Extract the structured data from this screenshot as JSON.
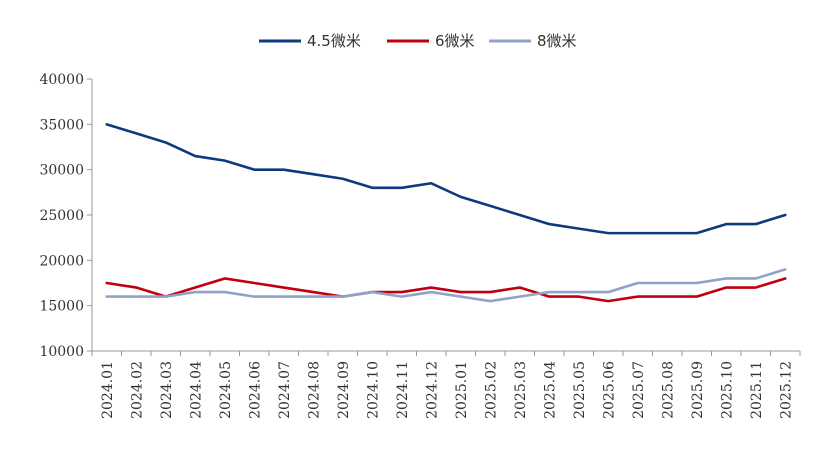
{
  "chart_data": {
    "type": "line",
    "title": "",
    "xlabel": "",
    "ylabel": "",
    "ylim": [
      10000,
      40000
    ],
    "yticks": [
      10000,
      15000,
      20000,
      25000,
      30000,
      35000,
      40000
    ],
    "grid": false,
    "legend_position": "top-center",
    "categories": [
      "2024.01",
      "2024.02",
      "2024.03",
      "2024.04",
      "2024.05",
      "2024.06",
      "2024.07",
      "2024.08",
      "2024.09",
      "2024.10",
      "2024.11",
      "2024.12",
      "2025.01",
      "2025.02",
      "2025.03",
      "2025.04",
      "2025.05",
      "2025.06",
      "2025.07",
      "2025.08",
      "2025.09",
      "2025.10",
      "2025.11",
      "2025.12"
    ],
    "series": [
      {
        "name": "4.5微米",
        "color": "#0d3a7f",
        "values": [
          35000,
          34000,
          33000,
          31500,
          31000,
          30000,
          30000,
          29500,
          29000,
          28000,
          28000,
          28500,
          27000,
          26000,
          25000,
          24000,
          23500,
          23000,
          23000,
          23000,
          23000,
          24000,
          24000,
          25000
        ]
      },
      {
        "name": "6微米",
        "color": "#c00010",
        "values": [
          17500,
          17000,
          16000,
          17000,
          18000,
          17500,
          17000,
          16500,
          16000,
          16500,
          16500,
          17000,
          16500,
          16500,
          17000,
          16000,
          16000,
          15500,
          16000,
          16000,
          16000,
          17000,
          17000,
          18000
        ]
      },
      {
        "name": "8微米",
        "color": "#8fa3c8",
        "values": [
          16000,
          16000,
          16000,
          16500,
          16500,
          16000,
          16000,
          16000,
          16000,
          16500,
          16000,
          16500,
          16000,
          15500,
          16000,
          16500,
          16500,
          16500,
          17500,
          17500,
          17500,
          18000,
          18000,
          19000
        ]
      }
    ]
  }
}
